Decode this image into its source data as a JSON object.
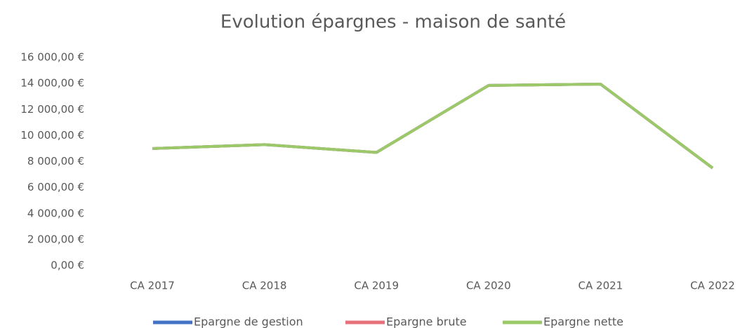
{
  "chart_data": {
    "type": "line",
    "title": "Evolution épargnes - maison de santé",
    "categories": [
      "CA 2017",
      "CA 2018",
      "CA 2019",
      "CA 2020",
      "CA 2021",
      "CA 2022"
    ],
    "series": [
      {
        "name": "Epargne de gestion",
        "color": "#4472c4",
        "values": [
          9000,
          9300,
          8700,
          13850,
          13950,
          7500
        ]
      },
      {
        "name": "Epargne brute",
        "color": "#e8707a",
        "values": [
          9000,
          9300,
          8700,
          13850,
          13950,
          7500
        ]
      },
      {
        "name": "Epargne nette",
        "color": "#9bc96a",
        "values": [
          9000,
          9300,
          8700,
          13850,
          13950,
          7500
        ]
      }
    ],
    "ylim": [
      0,
      16000
    ],
    "yticks": [
      {
        "value": 0,
        "label": "0,00 €"
      },
      {
        "value": 2000,
        "label": "2 000,00 €"
      },
      {
        "value": 4000,
        "label": "4 000,00 €"
      },
      {
        "value": 6000,
        "label": "6 000,00 €"
      },
      {
        "value": 8000,
        "label": "8 000,00 €"
      },
      {
        "value": 10000,
        "label": "10 000,00 €"
      },
      {
        "value": 12000,
        "label": "12 000,00 €"
      },
      {
        "value": 14000,
        "label": "14 000,00 €"
      },
      {
        "value": 16000,
        "label": "16 000,00 €"
      }
    ],
    "grid": false,
    "legend": "bottom"
  }
}
